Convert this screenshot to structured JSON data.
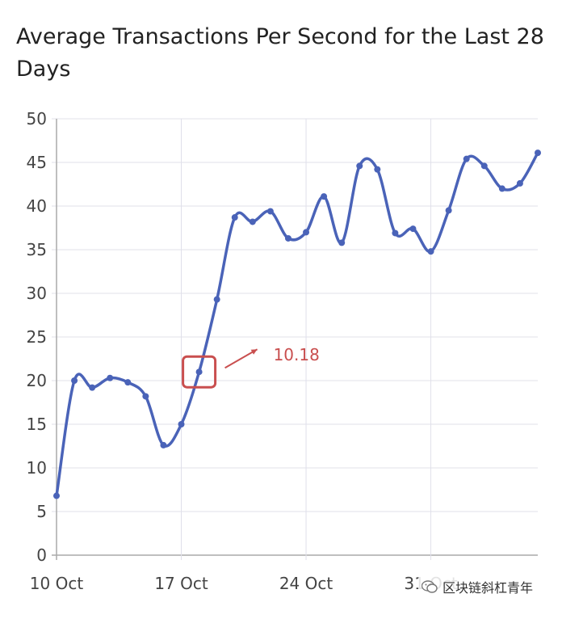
{
  "chart_data": {
    "type": "line",
    "title": "Average Transactions Per Second for the Last 28 Days",
    "xlabel": "",
    "ylabel": "",
    "ylim": [
      0,
      50
    ],
    "yticks": [
      0,
      5,
      10,
      15,
      20,
      25,
      30,
      35,
      40,
      45,
      50
    ],
    "x_tick_labels": [
      "10 Oct",
      "17 Oct",
      "24 Oct",
      "31 Oct"
    ],
    "x": [
      "10 Oct",
      "11 Oct",
      "12 Oct",
      "13 Oct",
      "14 Oct",
      "15 Oct",
      "16 Oct",
      "17 Oct",
      "18 Oct",
      "19 Oct",
      "20 Oct",
      "21 Oct",
      "22 Oct",
      "23 Oct",
      "24 Oct",
      "25 Oct",
      "26 Oct",
      "27 Oct",
      "28 Oct",
      "29 Oct",
      "30 Oct",
      "31 Oct",
      "1 Nov",
      "2 Nov",
      "3 Nov",
      "4 Nov",
      "5 Nov",
      "6 Nov"
    ],
    "series": [
      {
        "values": [
          6.8,
          20.0,
          19.2,
          20.3,
          19.8,
          18.2,
          12.6,
          15.0,
          21.0,
          29.3,
          38.7,
          38.2,
          39.4,
          36.3,
          37.0,
          41.1,
          35.8,
          44.6,
          44.2,
          36.9,
          37.4,
          34.8,
          39.5,
          45.4,
          44.6,
          42.0,
          42.6,
          46.1
        ]
      }
    ],
    "grid": true,
    "legend": "none",
    "colors": {
      "line": "#4a63b8",
      "grid": "#e0e0ea",
      "axis": "#aaaaaa",
      "annotation": "#c94f4f"
    },
    "annotation": {
      "text": "10.18",
      "target_x": "18 Oct",
      "target_y": 21.0
    }
  },
  "watermark": {
    "text": "区块链斜杠青年",
    "icon": "wechat-icon"
  }
}
